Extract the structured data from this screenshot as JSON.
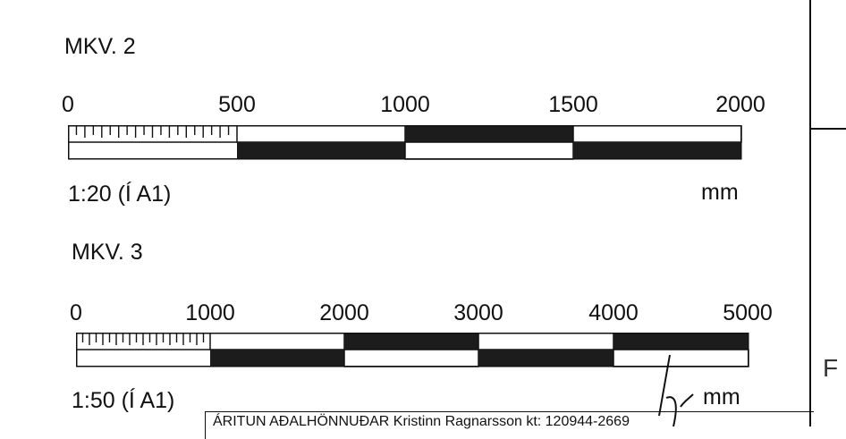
{
  "scales": [
    {
      "title": "MKV. 2",
      "ticks": [
        "0",
        "500",
        "1000",
        "1500",
        "2000"
      ],
      "ratio": "1:20 (Í A1)",
      "unit": "mm"
    },
    {
      "title": "MKV. 3",
      "ticks": [
        "0",
        "1000",
        "2000",
        "3000",
        "4000",
        "5000"
      ],
      "ratio": "1:50 (Í A1)",
      "unit": "mm"
    }
  ],
  "stamp_text": "ÁRITUN AÐALHÖNNUÐAR Kristinn Ragnarsson kt: 120944-2669",
  "edge_letter": "F",
  "colors": {
    "ink": "#111111",
    "fill_dark": "#1c1c1c",
    "paper": "#ffffff"
  }
}
